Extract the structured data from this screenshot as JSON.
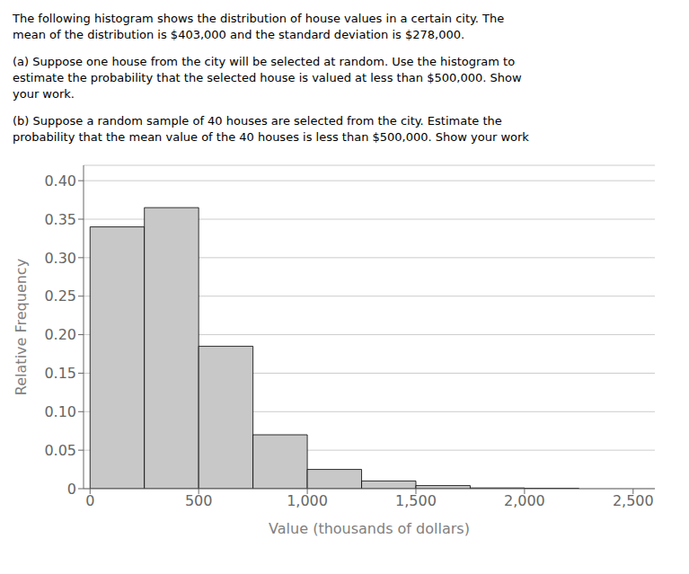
{
  "chart_data": {
    "type": "histogram",
    "annotations": [
      [
        "The following histogram shows the distribution of house values in a certain city. The",
        "mean of the distribution is $403,000 and the standard deviation is $278,000."
      ],
      [
        "(a) Suppose one house from the city will be selected at random. Use the histogram to",
        "estimate the probability that the selected house is valued at less than $500,000. Show",
        "your work."
      ],
      [
        "(b) Suppose a random sample of 40 houses are selected from the city. Estimate the",
        "probability that the mean value of the 40 houses is less than $500,000. Show your work"
      ]
    ],
    "bins": [
      0,
      250,
      500,
      750,
      1000,
      1250,
      1500,
      1750,
      2000,
      2250,
      2500
    ],
    "values": [
      0.34,
      0.365,
      0.185,
      0.07,
      0.025,
      0.01,
      0.004,
      0.001,
      0.0005,
      0.0
    ],
    "color": "#c8c8c8",
    "xlabel": "Value (thousands of dollars)",
    "ylabel": "Relative Frequency",
    "xlim": [
      -30,
      2600
    ],
    "ylim": [
      0,
      0.42
    ],
    "xticks": [
      0,
      500,
      {
        "value": 1000,
        "label": "1,000"
      },
      {
        "value": 1500,
        "label": "1,500"
      },
      {
        "value": 2000,
        "label": "2,000"
      },
      {
        "value": 2500,
        "label": "2,500"
      }
    ],
    "yticks": [
      0,
      0.05,
      {
        "value": 0.1,
        "label": "0.10"
      },
      0.15,
      {
        "value": 0.2,
        "label": "0.20"
      },
      0.25,
      {
        "value": 0.3,
        "label": "0.30"
      },
      0.35,
      {
        "value": 0.4,
        "label": "0.40"
      }
    ],
    "grid": true
  }
}
